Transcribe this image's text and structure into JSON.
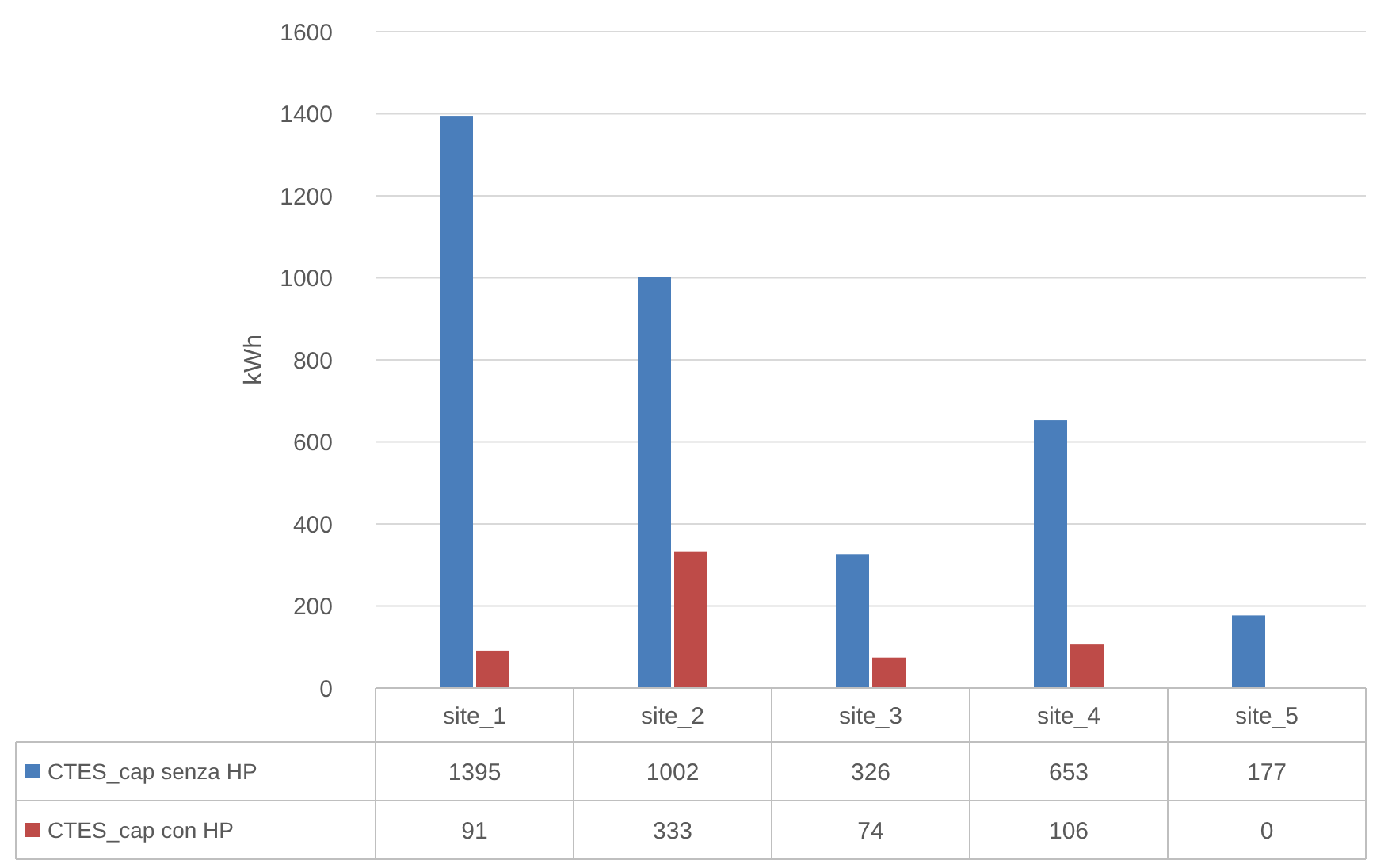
{
  "chart_data": {
    "type": "bar",
    "ylabel": "kWh",
    "categories": [
      "site_1",
      "site_2",
      "site_3",
      "site_4",
      "site_5"
    ],
    "series": [
      {
        "name": "CTES_cap senza HP",
        "color": "#4a7ebb",
        "values": [
          1395,
          1002,
          326,
          653,
          177
        ]
      },
      {
        "name": "CTES_cap con HP",
        "color": "#be4b48",
        "values": [
          91,
          333,
          74,
          106,
          0
        ]
      }
    ],
    "ylim": [
      0,
      1600
    ],
    "yticks": [
      0,
      200,
      400,
      600,
      800,
      1000,
      1200,
      1400,
      1600
    ],
    "grid": "y",
    "data_labels": true,
    "legend": "bottom"
  }
}
